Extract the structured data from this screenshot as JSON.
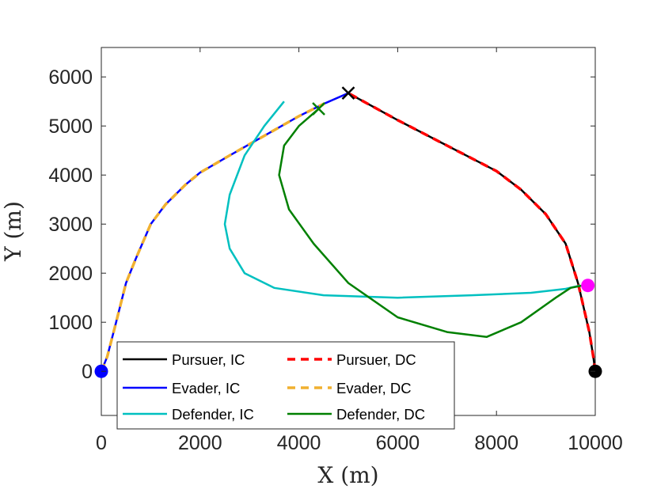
{
  "chart_data": {
    "type": "line",
    "title": "",
    "xlabel": "X (m)",
    "ylabel": "Y (m)",
    "xlim": [
      0,
      10000
    ],
    "ylim": [
      -900,
      6600
    ],
    "xticks": [
      0,
      2000,
      4000,
      6000,
      8000,
      10000
    ],
    "yticks": [
      0,
      1000,
      2000,
      3000,
      4000,
      5000,
      6000
    ],
    "xtick_labels": [
      "0",
      "2000",
      "4000",
      "6000",
      "8000",
      "10000"
    ],
    "ytick_labels": [
      "0",
      "1000",
      "2000",
      "3000",
      "4000",
      "5000",
      "6000"
    ],
    "grid": false,
    "legend_position": "bottom-left",
    "series": [
      {
        "name": "Pursuer, IC",
        "color": "#000000",
        "dash": "solid",
        "x": [
          10000,
          9960,
          9880,
          9800,
          9650,
          9400,
          9000,
          8500,
          8000,
          7000,
          6000,
          5000
        ],
        "y": [
          0,
          300,
          800,
          1150,
          1800,
          2600,
          3200,
          3700,
          4080,
          4600,
          5120,
          5670
        ]
      },
      {
        "name": "Pursuer, DC",
        "color": "#ff0000",
        "dash": "dashed",
        "x": [
          10000,
          9960,
          9880,
          9800,
          9650,
          9400,
          9000,
          8500,
          8000,
          7000,
          6000,
          5000
        ],
        "y": [
          0,
          300,
          800,
          1150,
          1800,
          2600,
          3200,
          3700,
          4080,
          4600,
          5120,
          5670
        ]
      },
      {
        "name": "Evader, IC",
        "color": "#0000ff",
        "dash": "solid",
        "x": [
          0,
          120,
          300,
          500,
          700,
          1000,
          1300,
          1700,
          2000,
          2600,
          3300,
          4000,
          4500,
          5000
        ],
        "y": [
          0,
          300,
          1000,
          1800,
          2300,
          3000,
          3400,
          3800,
          4050,
          4400,
          4800,
          5200,
          5450,
          5670
        ]
      },
      {
        "name": "Evader, DC",
        "color": "#f0b030",
        "dash": "dashed",
        "x": [
          0,
          120,
          300,
          500,
          700,
          1000,
          1300,
          1700,
          2000,
          2600,
          3300,
          4000,
          4500,
          4400
        ],
        "y": [
          0,
          300,
          1000,
          1800,
          2300,
          3000,
          3400,
          3800,
          4050,
          4400,
          4800,
          5200,
          5450,
          5350
        ]
      },
      {
        "name": "Defender, IC",
        "color": "#00c0c0",
        "dash": "solid",
        "x": [
          3700,
          3300,
          2900,
          2600,
          2500,
          2600,
          2900,
          3500,
          4500,
          6000,
          7500,
          8700,
          9400,
          9700
        ],
        "y": [
          5500,
          5000,
          4400,
          3600,
          3000,
          2500,
          2000,
          1700,
          1550,
          1500,
          1550,
          1600,
          1680,
          1750
        ]
      },
      {
        "name": "Defender, DC",
        "color": "#008000",
        "dash": "solid",
        "x": [
          4400,
          4000,
          3700,
          3600,
          3800,
          4300,
          5000,
          6000,
          7000,
          7800,
          8500,
          9200,
          9500,
          9750
        ],
        "y": [
          5350,
          5000,
          4600,
          4000,
          3300,
          2600,
          1800,
          1100,
          800,
          700,
          1000,
          1500,
          1700,
          1750
        ]
      }
    ],
    "markers": [
      {
        "name": "evader-start",
        "shape": "circle",
        "color": "#0000ff",
        "x": 0,
        "y": 0
      },
      {
        "name": "pursuer-start",
        "shape": "circle",
        "color": "#000000",
        "x": 10000,
        "y": 0
      },
      {
        "name": "defender-start",
        "shape": "circle",
        "color": "#ff00ff",
        "x": 9850,
        "y": 1750
      },
      {
        "name": "capture-ic",
        "shape": "x",
        "color": "#000000",
        "x": 5000,
        "y": 5670
      },
      {
        "name": "capture-dc",
        "shape": "x",
        "color": "#008000",
        "x": 4400,
        "y": 5350
      }
    ]
  }
}
